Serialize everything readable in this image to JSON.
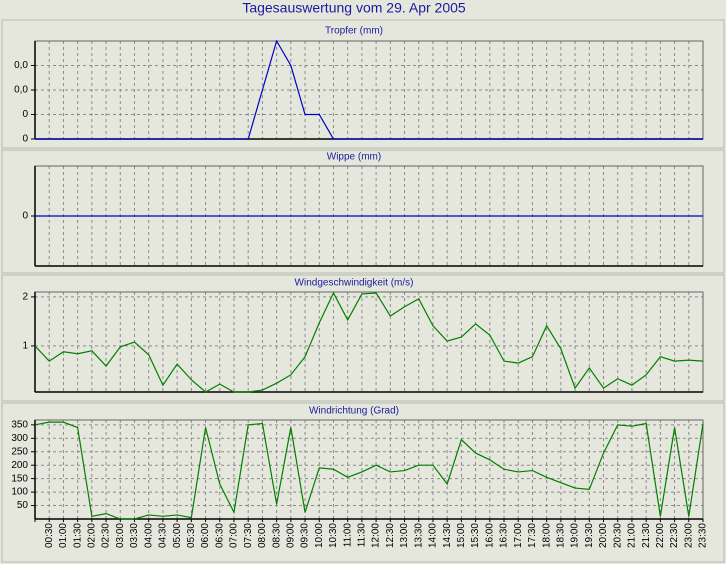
{
  "title": "Tagesauswertung vom 29. Apr 2005",
  "chart_data": [
    {
      "type": "line",
      "title": "Tropfer (mm)",
      "series": [
        {
          "name": "Tropfer",
          "color": "#0000c8",
          "values": [
            0,
            0,
            0,
            0,
            0,
            0,
            0,
            0,
            0,
            0,
            0,
            0,
            0,
            0,
            0,
            0,
            0.02,
            0.04,
            0.03,
            0.01,
            0.01,
            0,
            0,
            0,
            0,
            0,
            0,
            0,
            0,
            0,
            0,
            0,
            0,
            0,
            0,
            0,
            0,
            0,
            0,
            0,
            0,
            0,
            0,
            0,
            0,
            0,
            0,
            0
          ]
        }
      ],
      "ylim": [
        0,
        0.04
      ],
      "yticks": [
        0,
        {
          "value": 0.01,
          "label": "0"
        },
        {
          "value": 0.02,
          "label": "0,0"
        },
        {
          "value": 0.03,
          "label": "0,0"
        }
      ],
      "grid": true
    },
    {
      "type": "line",
      "title": "Wippe (mm)",
      "series": [
        {
          "name": "Wippe",
          "color": "#0000c8",
          "values": [
            0,
            0,
            0,
            0,
            0,
            0,
            0,
            0,
            0,
            0,
            0,
            0,
            0,
            0,
            0,
            0,
            0,
            0,
            0,
            0,
            0,
            0,
            0,
            0,
            0,
            0,
            0,
            0,
            0,
            0,
            0,
            0,
            0,
            0,
            0,
            0,
            0,
            0,
            0,
            0,
            0,
            0,
            0,
            0,
            0,
            0,
            0,
            0
          ]
        }
      ],
      "ylim": [
        -1,
        1
      ],
      "yticks": [
        0
      ],
      "grid": true
    },
    {
      "type": "line",
      "title": "Windgeschwindigkeit (m/s)",
      "series": [
        {
          "name": "Windgeschwindigkeit",
          "color": "#008000",
          "values": [
            1.0,
            0.69,
            0.88,
            0.84,
            0.9,
            0.59,
            0.98,
            1.08,
            0.82,
            0.2,
            0.63,
            0.31,
            0.06,
            0.22,
            0.06,
            0.06,
            0.1,
            0.24,
            0.41,
            0.78,
            1.47,
            2.08,
            1.53,
            2.06,
            2.08,
            1.61,
            1.8,
            1.96,
            1.41,
            1.1,
            1.18,
            1.45,
            1.22,
            0.69,
            0.65,
            0.78,
            1.41,
            0.94,
            0.14,
            0.55,
            0.14,
            0.33,
            0.2,
            0.41,
            0.78,
            0.69,
            0.71,
            0.69
          ]
        }
      ],
      "ylim": [
        0.06,
        2.1
      ],
      "yticks": [
        1,
        2
      ],
      "grid": true
    },
    {
      "type": "line",
      "title": "Windrichtung (Grad)",
      "categories": [
        null,
        "00:30",
        "01:00",
        "01:30",
        "02:00",
        "02:30",
        "03:00",
        "03:30",
        "04:00",
        "04:30",
        "05:00",
        "05:30",
        "06:00",
        "06:30",
        "07:00",
        "07:30",
        "08:00",
        "08:30",
        "09:00",
        "09:30",
        "10:00",
        "10:30",
        "11:00",
        "11:30",
        "12:00",
        "12:30",
        "13:00",
        "13:30",
        "14:00",
        "14:30",
        "15:00",
        "15:30",
        "16:00",
        "16:30",
        "17:00",
        "17:30",
        "18:00",
        "18:30",
        "19:00",
        "19:30",
        "20:00",
        "20:30",
        "21:00",
        "21:30",
        "22:00",
        "22:30",
        "23:00",
        "23:30"
      ],
      "series": [
        {
          "name": "Windrichtung",
          "color": "#008000",
          "values": [
            350,
            360,
            360,
            340,
            10,
            20,
            0,
            0,
            15,
            10,
            15,
            5,
            340,
            130,
            25,
            350,
            355,
            55,
            340,
            25,
            190,
            185,
            155,
            175,
            200,
            175,
            180,
            200,
            200,
            130,
            295,
            245,
            220,
            185,
            175,
            180,
            155,
            135,
            115,
            110,
            245,
            350,
            345,
            355,
            10,
            340,
            10,
            355
          ]
        }
      ],
      "ylim": [
        0,
        368
      ],
      "yticks": [
        50,
        100,
        150,
        200,
        250,
        300,
        350
      ],
      "grid": true
    }
  ]
}
